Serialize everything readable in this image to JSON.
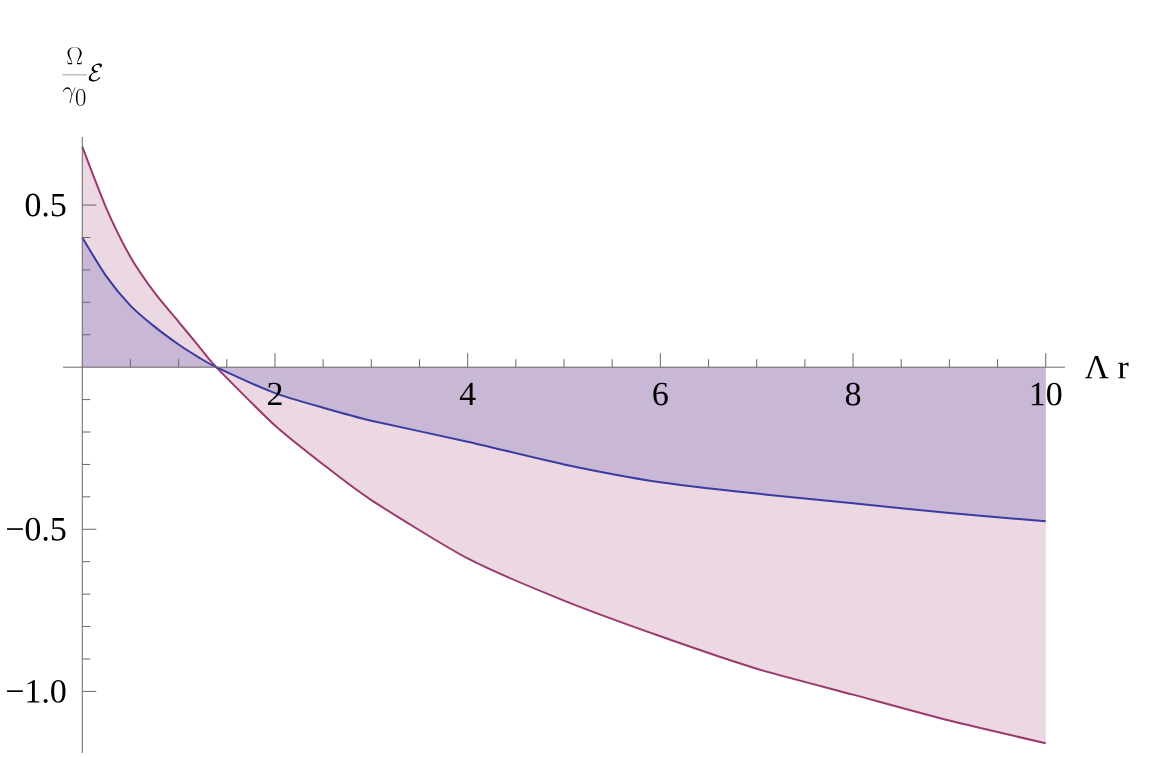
{
  "chart_data": {
    "type": "area",
    "xlabel": "Λ r",
    "ylabel": "\\frac{\\Omega}{\\gamma_0}\\mathcal{E}",
    "x": [
      0,
      0.25,
      0.5,
      0.75,
      1,
      1.2,
      1.39,
      2,
      2.5,
      3,
      4,
      5,
      6,
      7,
      8,
      9,
      10
    ],
    "series": [
      {
        "color": "#9b3a6f",
        "values": [
          0.68,
          0.49,
          0.34,
          0.23,
          0.14,
          0.068,
          0,
          -0.18,
          -0.3,
          -0.41,
          -0.59,
          -0.72,
          -0.83,
          -0.93,
          -1.01,
          -1.09,
          -1.16
        ]
      },
      {
        "color": "#3b3ba0",
        "values": [
          0.4,
          0.28,
          0.19,
          0.125,
          0.07,
          0.032,
          0,
          -0.08,
          -0.125,
          -0.165,
          -0.23,
          -0.3,
          -0.355,
          -0.39,
          -0.42,
          -0.45,
          -0.475
        ]
      }
    ],
    "xlim": [
      -0.2,
      10.2
    ],
    "ylim": [
      -1.19,
      0.71
    ],
    "xticks": [
      {
        "value": 0,
        "label": null
      },
      2,
      4,
      6,
      8,
      10
    ],
    "yticks": [
      {
        "value": -1.0,
        "label": "−1.0"
      },
      {
        "value": -0.5,
        "label": "−0.5"
      },
      {
        "value": 0,
        "label": null
      },
      0.5
    ]
  }
}
